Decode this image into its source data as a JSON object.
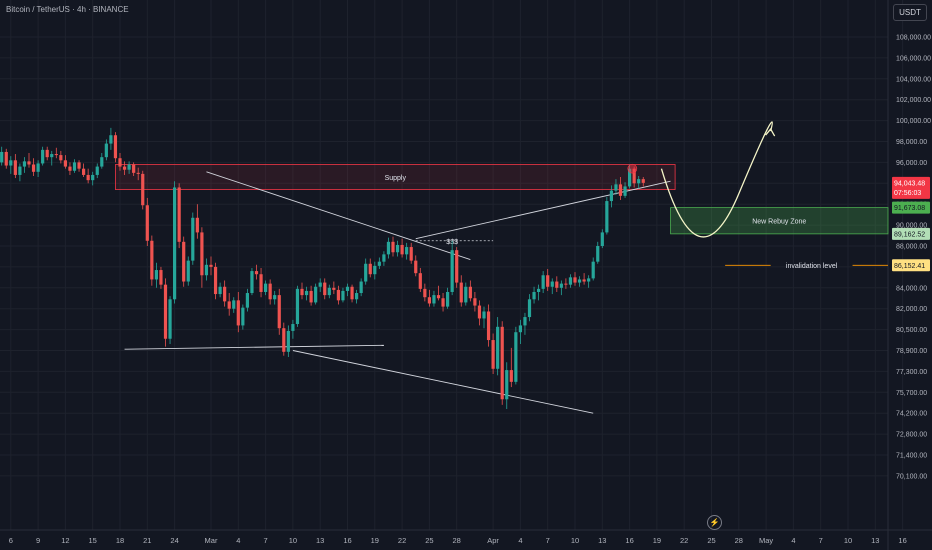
{
  "header": {
    "title": "Bitcoin / TetherUS · 4h · BINANCE",
    "currency": "USDT"
  },
  "colors": {
    "background": "#131722",
    "up": "#26a69a",
    "down": "#ef5350",
    "supply": "#f23645",
    "rebuy": "#4caf50",
    "arrow": "#f5f5c8",
    "grid": "#1e222d",
    "axis_text": "#b2b5be"
  },
  "chart_data": {
    "type": "candlestick",
    "y_ticks": [
      "108,000.00",
      "106,000.00",
      "104,000.00",
      "102,000.00",
      "100,000.00",
      "98,000.00",
      "96,000.00",
      "94,000.00",
      "92,000.00",
      "90,000.00",
      "88,000.00",
      "86,000.00",
      "84,000.00",
      "82,000.00",
      "80,500.00",
      "78,900.00",
      "77,300.00",
      "75,700.00",
      "74,200.00",
      "72,800.00",
      "71,400.00",
      "70,100.00"
    ],
    "y_tick_values": [
      108000,
      106000,
      104000,
      102000,
      100000,
      98000,
      96000,
      94000,
      92000,
      90000,
      88000,
      86000,
      84000,
      82000,
      80500,
      78900,
      77300,
      75700,
      74200,
      72800,
      71400,
      70100
    ],
    "x_ticks": [
      "6",
      "9",
      "12",
      "15",
      "18",
      "21",
      "24",
      "Mar",
      "4",
      "7",
      "10",
      "13",
      "16",
      "19",
      "22",
      "25",
      "28",
      "Apr",
      "4",
      "7",
      "10",
      "13",
      "16",
      "19",
      "22",
      "25",
      "28",
      "May",
      "4",
      "7",
      "10",
      "13",
      "16"
    ],
    "x_tick_days": [
      -22,
      -19,
      -16,
      -13,
      -10,
      -7,
      -4,
      0,
      3,
      6,
      9,
      12,
      15,
      18,
      21,
      24,
      27,
      31,
      34,
      37,
      40,
      43,
      46,
      49,
      52,
      55,
      58,
      61,
      64,
      67,
      70,
      73,
      76
    ],
    "ohlc": [
      [
        -27,
        97100,
        98200,
        96000,
        96800
      ],
      [
        -26.5,
        96800,
        97600,
        95800,
        97300
      ],
      [
        -26,
        97300,
        98000,
        95500,
        95800
      ],
      [
        -25.5,
        95800,
        97000,
        94800,
        96600
      ],
      [
        -25,
        96600,
        97800,
        96000,
        97200
      ],
      [
        -24.5,
        97200,
        97900,
        95900,
        96100
      ],
      [
        -24,
        96100,
        96600,
        94600,
        95200
      ],
      [
        -23.5,
        95200,
        96400,
        94700,
        96000
      ],
      [
        -23,
        96000,
        97500,
        95700,
        97000
      ],
      [
        -22.5,
        97000,
        97300,
        95400,
        95700
      ],
      [
        -22,
        95700,
        96600,
        94900,
        96200
      ],
      [
        -21.5,
        96200,
        96800,
        94500,
        94800
      ],
      [
        -21,
        94800,
        95900,
        94200,
        95600
      ],
      [
        -20.5,
        95600,
        96500,
        95000,
        96100
      ],
      [
        -20,
        96100,
        96900,
        95500,
        95800
      ],
      [
        -19.5,
        95800,
        96400,
        94700,
        95100
      ],
      [
        -19,
        95100,
        96200,
        94600,
        95900
      ],
      [
        -18.5,
        95900,
        97500,
        95700,
        97200
      ],
      [
        -18,
        97200,
        97500,
        96200,
        96500
      ],
      [
        -17.5,
        96500,
        97100,
        95700,
        96800
      ],
      [
        -17,
        96800,
        97400,
        96400,
        96700
      ],
      [
        -16.5,
        96700,
        97100,
        95900,
        96200
      ],
      [
        -16,
        96200,
        96700,
        95400,
        95600
      ],
      [
        -15.5,
        95600,
        96000,
        94800,
        95200
      ],
      [
        -15,
        95200,
        96300,
        95000,
        96000
      ],
      [
        -14.5,
        96000,
        96200,
        95100,
        95400
      ],
      [
        -14,
        95400,
        95900,
        94600,
        94800
      ],
      [
        -13.5,
        94800,
        95400,
        94000,
        94300
      ],
      [
        -13,
        94300,
        95100,
        93800,
        94800
      ],
      [
        -12.5,
        94800,
        95900,
        94500,
        95600
      ],
      [
        -12,
        95600,
        96900,
        95400,
        96500
      ],
      [
        -11.5,
        96500,
        98200,
        96200,
        97800
      ],
      [
        -11,
        97800,
        99300,
        97200,
        98600
      ],
      [
        -10.5,
        98600,
        98900,
        96000,
        96400
      ],
      [
        -10,
        96400,
        96900,
        95200,
        95600
      ],
      [
        -9.5,
        95600,
        96100,
        94800,
        95300
      ],
      [
        -9,
        95300,
        96100,
        94900,
        95800
      ],
      [
        -8.5,
        95800,
        96000,
        94700,
        95000
      ],
      [
        -8,
        95000,
        95500,
        94300,
        94900
      ],
      [
        -7.5,
        94900,
        95200,
        91500,
        91900
      ],
      [
        -7,
        91900,
        92600,
        88000,
        88500
      ],
      [
        -6.5,
        88500,
        89000,
        84200,
        84800
      ],
      [
        -6,
        84800,
        86400,
        84000,
        85700
      ],
      [
        -5.5,
        85700,
        86000,
        83900,
        84300
      ],
      [
        -5,
        84300,
        84900,
        79200,
        79800
      ],
      [
        -4.5,
        79800,
        83200,
        79400,
        82900
      ],
      [
        -4,
        82900,
        94200,
        82500,
        93600
      ],
      [
        -3.5,
        93600,
        94000,
        87800,
        88400
      ],
      [
        -3,
        88400,
        88900,
        84100,
        84600
      ],
      [
        -2.5,
        84600,
        87000,
        84200,
        86600
      ],
      [
        -2,
        86600,
        91200,
        86200,
        90700
      ],
      [
        -1.5,
        90700,
        92000,
        88700,
        89300
      ],
      [
        -1,
        89300,
        89800,
        84000,
        85200
      ],
      [
        -0.5,
        85200,
        86800,
        84700,
        86200
      ],
      [
        0,
        86200,
        87000,
        85200,
        86000
      ],
      [
        0.5,
        86000,
        86400,
        82900,
        83400
      ],
      [
        1,
        83400,
        84500,
        83100,
        84100
      ],
      [
        1.5,
        84100,
        84700,
        82200,
        82700
      ],
      [
        2,
        82700,
        83500,
        81500,
        82000
      ],
      [
        2.5,
        82000,
        83100,
        81700,
        82800
      ],
      [
        3,
        82800,
        83600,
        80300,
        80800
      ],
      [
        3.5,
        80800,
        82400,
        80500,
        82100
      ],
      [
        4,
        82100,
        83900,
        81800,
        83500
      ],
      [
        4.5,
        83500,
        85900,
        83300,
        85600
      ],
      [
        5,
        85600,
        86200,
        84800,
        85300
      ],
      [
        5.5,
        85300,
        85900,
        83100,
        83600
      ],
      [
        6,
        83600,
        84700,
        83300,
        84400
      ],
      [
        6.5,
        84400,
        84800,
        82400,
        82900
      ],
      [
        7,
        82900,
        83700,
        82400,
        83300
      ],
      [
        7.5,
        83300,
        83900,
        80100,
        80600
      ],
      [
        8,
        80600,
        81000,
        78500,
        78800
      ],
      [
        8.5,
        78800,
        80800,
        78400,
        80400
      ],
      [
        9,
        80400,
        81200,
        79800,
        80900
      ],
      [
        9.5,
        80900,
        84200,
        80700,
        83900
      ],
      [
        10,
        83900,
        84500,
        82900,
        83300
      ],
      [
        10.5,
        83300,
        84100,
        82800,
        83700
      ],
      [
        11,
        83700,
        84200,
        82300,
        82600
      ],
      [
        11.5,
        82600,
        84400,
        82400,
        84100
      ],
      [
        12,
        84100,
        84900,
        83600,
        84500
      ],
      [
        12.5,
        84500,
        84900,
        82900,
        83300
      ],
      [
        13,
        83300,
        84300,
        83000,
        84000
      ],
      [
        13.5,
        84000,
        84600,
        83400,
        83800
      ],
      [
        14,
        83800,
        84200,
        82400,
        82800
      ],
      [
        14.5,
        82800,
        84000,
        82600,
        83700
      ],
      [
        15,
        83700,
        84400,
        83200,
        84100
      ],
      [
        15.5,
        84100,
        84300,
        82600,
        82900
      ],
      [
        16,
        82900,
        83800,
        82500,
        83500
      ],
      [
        16.5,
        83500,
        84900,
        83200,
        84600
      ],
      [
        17,
        84600,
        86800,
        84300,
        86300
      ],
      [
        17.5,
        86300,
        86800,
        85000,
        85300
      ],
      [
        18,
        85300,
        86500,
        84800,
        86100
      ],
      [
        18.5,
        86100,
        86900,
        85800,
        86500
      ],
      [
        19,
        86500,
        87500,
        86100,
        87200
      ],
      [
        19.5,
        87200,
        88800,
        86800,
        88400
      ],
      [
        20,
        88400,
        88900,
        87000,
        87400
      ],
      [
        20.5,
        87400,
        88500,
        87000,
        88100
      ],
      [
        21,
        88100,
        88700,
        86900,
        87200
      ],
      [
        21.5,
        87200,
        88300,
        86700,
        87900
      ],
      [
        22,
        87900,
        88300,
        86300,
        86600
      ],
      [
        22.5,
        86600,
        87100,
        85100,
        85400
      ],
      [
        23,
        85400,
        85900,
        83600,
        83900
      ],
      [
        23.5,
        83900,
        84400,
        82700,
        83100
      ],
      [
        24,
        83100,
        83800,
        82200,
        82500
      ],
      [
        24.5,
        82500,
        83700,
        82200,
        83300
      ],
      [
        25,
        83300,
        84200,
        82800,
        83000
      ],
      [
        25.5,
        83000,
        83500,
        81800,
        82200
      ],
      [
        26,
        82200,
        84000,
        82000,
        83600
      ],
      [
        26.5,
        83600,
        88500,
        83300,
        87600
      ],
      [
        27,
        87600,
        87900,
        84000,
        84500
      ],
      [
        27.5,
        84500,
        85200,
        82200,
        82600
      ],
      [
        28,
        82600,
        84500,
        82300,
        84100
      ],
      [
        28.5,
        84100,
        84700,
        82700,
        83000
      ],
      [
        29,
        83000,
        83600,
        81800,
        82300
      ],
      [
        29.5,
        82300,
        82800,
        80800,
        81300
      ],
      [
        30,
        81300,
        82200,
        80600,
        81800
      ],
      [
        30.5,
        81800,
        82400,
        79200,
        79700
      ],
      [
        31,
        79700,
        80200,
        77100,
        77500
      ],
      [
        31.5,
        77500,
        81400,
        77000,
        80700
      ],
      [
        32,
        80700,
        81100,
        74800,
        75200
      ],
      [
        32.5,
        75200,
        78000,
        74500,
        77400
      ],
      [
        33,
        77400,
        79100,
        76100,
        76500
      ],
      [
        33.5,
        76500,
        80700,
        76300,
        80300
      ],
      [
        34,
        80300,
        81200,
        79400,
        80800
      ],
      [
        34.5,
        80800,
        81700,
        80100,
        81400
      ],
      [
        35,
        81400,
        83400,
        81100,
        82900
      ],
      [
        35.5,
        82900,
        84100,
        82500,
        83600
      ],
      [
        36,
        83600,
        84300,
        82800,
        83900
      ],
      [
        36.5,
        83900,
        85600,
        83500,
        85200
      ],
      [
        37,
        85200,
        85800,
        83700,
        84100
      ],
      [
        37.5,
        84100,
        84900,
        83400,
        84600
      ],
      [
        38,
        84600,
        85100,
        83600,
        84000
      ],
      [
        38.5,
        84000,
        84700,
        83300,
        84400
      ],
      [
        39,
        84400,
        84900,
        83900,
        84300
      ],
      [
        39.5,
        84300,
        85300,
        84000,
        85000
      ],
      [
        40,
        85000,
        85500,
        84200,
        84500
      ],
      [
        40.5,
        84500,
        85100,
        84100,
        84800
      ],
      [
        41,
        84800,
        85400,
        84300,
        84600
      ],
      [
        41.5,
        84600,
        85200,
        84000,
        84900
      ],
      [
        42,
        84900,
        86900,
        84700,
        86500
      ],
      [
        42.5,
        86500,
        88400,
        86300,
        88000
      ],
      [
        43,
        88000,
        89600,
        87800,
        89300
      ],
      [
        43.5,
        89300,
        92700,
        89100,
        92300
      ],
      [
        44,
        92300,
        93800,
        91700,
        93300
      ],
      [
        44.5,
        93300,
        94400,
        92900,
        93900
      ],
      [
        45,
        93900,
        94600,
        92400,
        92800
      ],
      [
        45.5,
        92800,
        94100,
        92600,
        93700
      ],
      [
        46,
        93700,
        95800,
        93500,
        95400
      ],
      [
        46.5,
        95400,
        95600,
        93600,
        94000
      ],
      [
        47,
        94000,
        94700,
        93500,
        94400
      ],
      [
        47.5,
        94400,
        94600,
        93700,
        94043
      ]
    ],
    "annotations": {
      "supply_zone": {
        "label": "Supply",
        "top": 95800,
        "bottom": 93400
      },
      "rebuy_zone": {
        "label": "New Rebuy Zone",
        "top": 91673,
        "bottom": 89162
      },
      "invalidation": {
        "label": "invalidation level",
        "value": 86152.41
      },
      "liquidity_label": "$$$"
    },
    "price_labels": {
      "last": "94,043.48",
      "countdown": "07:56:03",
      "rebuy_top": "91,673.08",
      "rebuy_bottom": "89,162.52",
      "invalidation": "86,152.41"
    },
    "xlim": [
      -28,
      79
    ],
    "ylim": [
      70100,
      110000
    ]
  }
}
